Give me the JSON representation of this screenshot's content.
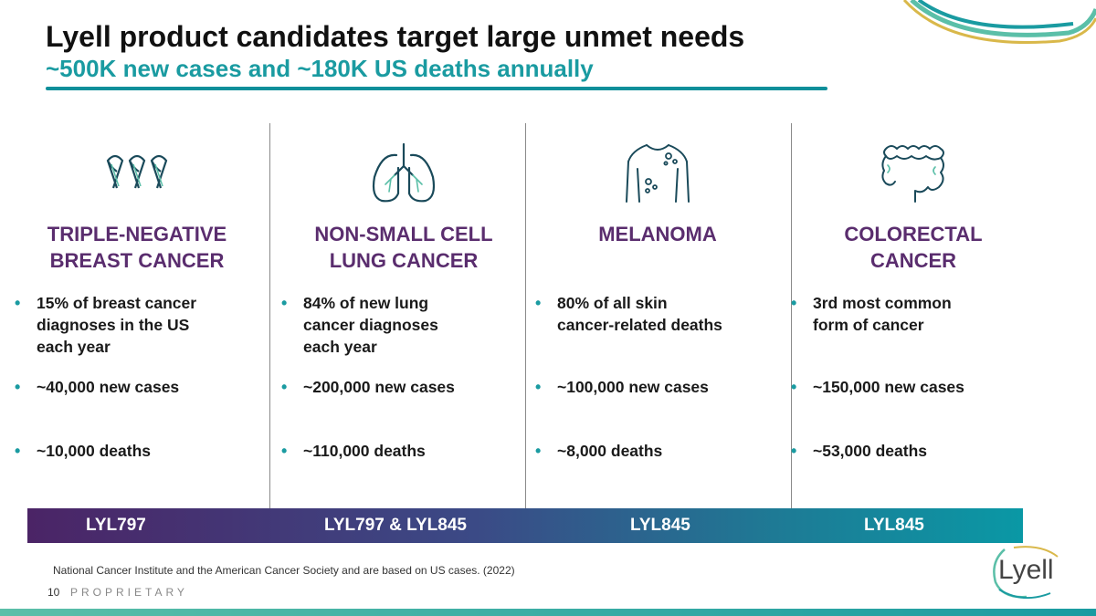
{
  "title": "Lyell product candidates target large unmet needs",
  "subtitle": "~500K new cases and ~180K US deaths annually",
  "columns": [
    {
      "icon": "awareness-ribbons-icon",
      "heading": [
        "TRIPLE-NEGATIVE",
        "BREAST CANCER"
      ],
      "bullets": [
        [
          "15% of breast cancer",
          "diagnoses in the US",
          "each year"
        ],
        [
          "~40,000 new cases"
        ],
        [
          "~10,000 deaths"
        ]
      ],
      "product": "LYL797"
    },
    {
      "icon": "lungs-icon",
      "heading": [
        "NON-SMALL CELL",
        "LUNG CANCER"
      ],
      "bullets": [
        [
          "84% of new lung",
          "cancer diagnoses",
          "each year"
        ],
        [
          "~200,000 new cases"
        ],
        [
          "~110,000 deaths"
        ]
      ],
      "product": "LYL797 & LYL845"
    },
    {
      "icon": "torso-skin-spots-icon",
      "heading": [
        "MELANOMA",
        ""
      ],
      "bullets": [
        [
          "80% of all skin",
          "cancer-related deaths"
        ],
        [
          "~100,000 new cases"
        ],
        [
          "~8,000 deaths"
        ]
      ],
      "product": "LYL845"
    },
    {
      "icon": "colon-icon",
      "heading": [
        "COLORECTAL",
        "CANCER"
      ],
      "bullets": [
        [
          "3rd most common",
          "form of cancer"
        ],
        [
          "~150,000 new cases"
        ],
        [
          "~53,000 deaths"
        ]
      ],
      "product": "LYL845"
    }
  ],
  "footnote": "National Cancer Institute and the American Cancer Society and are based on US cases. (2022)",
  "page_number": "10",
  "proprietary": "PROPRIETARY",
  "logo_text": "Lyell",
  "colors": {
    "heading_purple": "#5a2d6e",
    "accent_teal": "#1a9ba1",
    "bar_start": "#4b2466",
    "bar_end": "#0a98a5"
  }
}
